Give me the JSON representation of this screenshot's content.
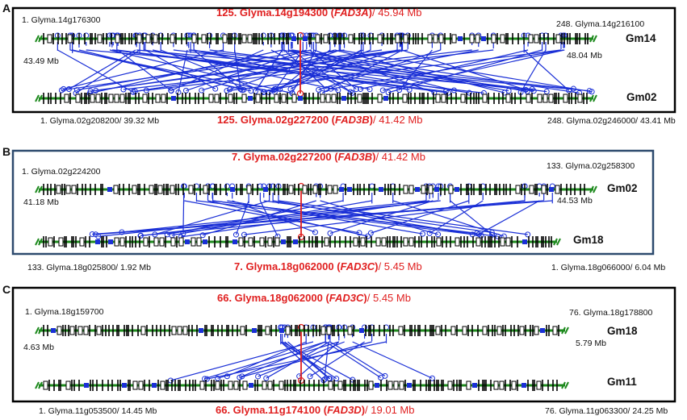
{
  "panels": [
    {
      "id": "A",
      "top_title": {
        "num": "125. Glyma.14g194300",
        "gene": "FAD3A",
        "pos": "45.94 Mb"
      },
      "bottom_title": {
        "num": "125. Glyma.02g227200",
        "gene": "FAD3B",
        "pos": "41.42 Mb"
      },
      "top_left": "1. Glyma.14g176300",
      "top_left_mb": "43.49 Mb",
      "top_right": "248. Glyma.14g216100",
      "top_right_mb": "48.04 Mb",
      "top_chrom": "Gm14",
      "bottom_chrom": "Gm02",
      "bottom_left": "1. Glyma.02g208200/ 39.32 Mb",
      "bottom_right": "248. Glyma.02g246000/ 43.41 Mb"
    },
    {
      "id": "B",
      "top_title": {
        "num": "7. Glyma.02g227200",
        "gene": "FAD3B",
        "pos": "41.42 Mb"
      },
      "bottom_title": {
        "num": "7. Glyma.18g062000",
        "gene": "FAD3C",
        "pos": "5.45 Mb"
      },
      "top_left": "1. Glyma.02g224200",
      "top_left_mb": "41.18 Mb",
      "top_right": "133. Glyma.02g258300",
      "top_right_mb": "44.53 Mb",
      "top_chrom": "Gm02",
      "bottom_chrom": "Gm18",
      "bottom_left": "133. Glyma.18g025800/ 1.92 Mb",
      "bottom_right": "1. Glyma.18g066000/ 6.04 Mb"
    },
    {
      "id": "C",
      "top_title": {
        "num": "66. Glyma.18g062000",
        "gene": "FAD3C",
        "pos": "5.45 Mb"
      },
      "bottom_title": {
        "num": "66. Glyma.11g174100",
        "gene": "FAD3D",
        "pos": "19.01 Mb"
      },
      "top_left": "1. Glyma.18g159700",
      "top_left_mb": "4.63 Mb",
      "top_right": "76. Glyma.18g178800",
      "top_right_mb": "5.79 Mb",
      "top_chrom": "Gm18",
      "bottom_chrom": "Gm11",
      "bottom_left": "1. Glyma.11g053500/ 14.45 Mb",
      "bottom_right": "76. Glyma.11g063300/ 24.25 Mb"
    }
  ],
  "colors": {
    "chromosome": "#1e8a1e",
    "link": "#1a2fd6",
    "highlight": "#e02020",
    "gene": "#000000",
    "box_a_c": "#000000",
    "box_b": "#2d4a6e"
  }
}
